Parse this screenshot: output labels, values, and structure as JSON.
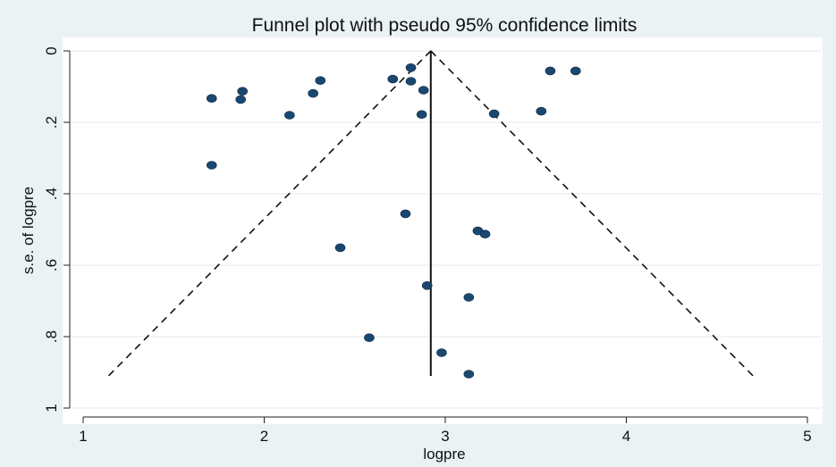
{
  "chart_data": {
    "type": "scatter",
    "title": "Funnel plot with pseudo 95% confidence limits",
    "xlabel": "logpre",
    "ylabel": "s.e. of logpre",
    "xlim": [
      1,
      5
    ],
    "ylim": [
      0,
      1
    ],
    "y_reversed": true,
    "x_ticks": [
      "1",
      "2",
      "3",
      "4",
      "5"
    ],
    "y_ticks": [
      "0",
      ".2",
      ".4",
      ".6",
      ".8",
      "1"
    ],
    "x_tick_values": [
      1,
      2,
      3,
      4,
      5
    ],
    "y_tick_values": [
      0,
      0.2,
      0.4,
      0.6,
      0.8,
      1
    ],
    "grid": true,
    "pooled_estimate": 2.92,
    "ci_limits": {
      "apex": [
        2.92,
        0
      ],
      "left_bottom": [
        1.14,
        0.91
      ],
      "right_bottom": [
        4.7,
        0.91
      ]
    },
    "reference_line": {
      "x": 2.92,
      "y_from": 0,
      "y_to": 0.91
    },
    "points": [
      {
        "x": 1.71,
        "y": 0.133
      },
      {
        "x": 1.88,
        "y": 0.113
      },
      {
        "x": 1.87,
        "y": 0.136
      },
      {
        "x": 2.14,
        "y": 0.18
      },
      {
        "x": 2.27,
        "y": 0.119
      },
      {
        "x": 2.31,
        "y": 0.083
      },
      {
        "x": 2.71,
        "y": 0.079
      },
      {
        "x": 2.81,
        "y": 0.047
      },
      {
        "x": 2.81,
        "y": 0.085
      },
      {
        "x": 2.88,
        "y": 0.11
      },
      {
        "x": 2.87,
        "y": 0.178
      },
      {
        "x": 3.27,
        "y": 0.176
      },
      {
        "x": 3.53,
        "y": 0.169
      },
      {
        "x": 3.58,
        "y": 0.056
      },
      {
        "x": 3.72,
        "y": 0.056
      },
      {
        "x": 1.71,
        "y": 0.32
      },
      {
        "x": 2.78,
        "y": 0.456
      },
      {
        "x": 3.18,
        "y": 0.504
      },
      {
        "x": 3.22,
        "y": 0.513
      },
      {
        "x": 2.42,
        "y": 0.551
      },
      {
        "x": 2.9,
        "y": 0.657
      },
      {
        "x": 3.13,
        "y": 0.69
      },
      {
        "x": 2.58,
        "y": 0.803
      },
      {
        "x": 2.98,
        "y": 0.845
      },
      {
        "x": 3.13,
        "y": 0.905
      }
    ]
  }
}
